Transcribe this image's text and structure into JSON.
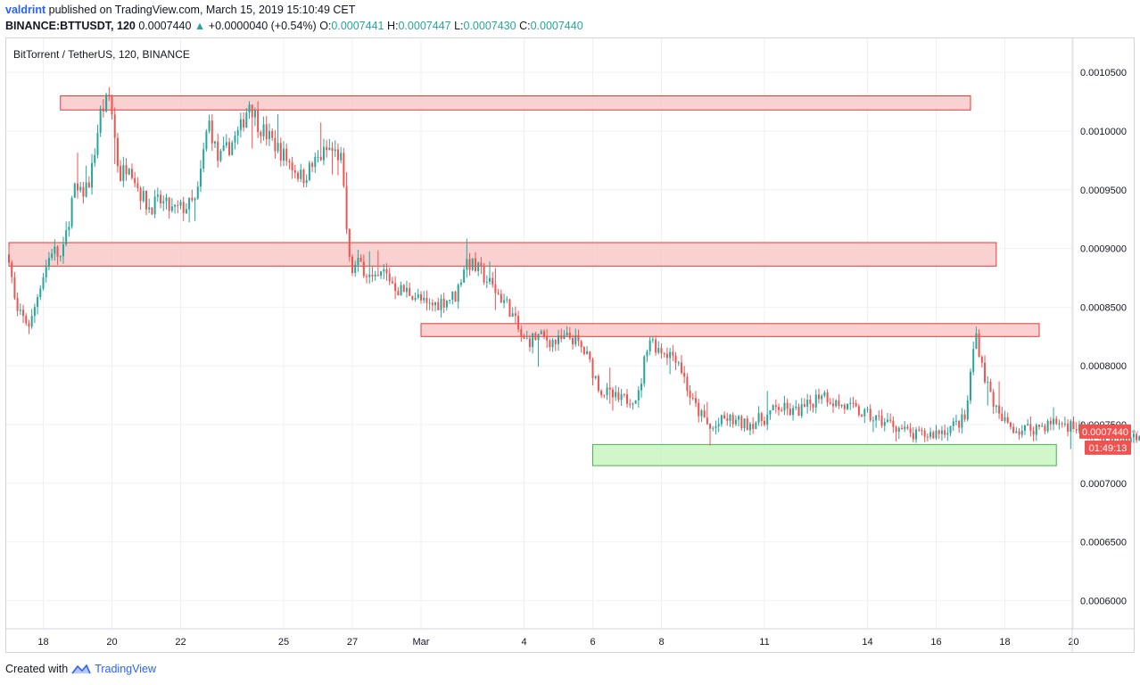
{
  "header": {
    "author": "valdrint",
    "published_text": "published on TradingView.com, March 15, 2019 15:10:49 CET",
    "symbol": "BINANCE:BTTUSDT, 120",
    "last": "0.0007440",
    "change": "+0.0000040 (+0.54%)",
    "o_label": "O:",
    "o_value": "0.0007441",
    "h_label": "H:",
    "h_value": "0.0007447",
    "l_label": "L:",
    "l_value": "0.0007430",
    "c_label": "C:",
    "c_value": "0.0007440"
  },
  "footer": {
    "created_with": "Created with",
    "brand": "TradingView"
  },
  "colors": {
    "up": "#26a69a",
    "down": "#ef5350",
    "grid": "#eef0f4",
    "resistance_fill": "#f8c9c9",
    "resistance_border": "#e53935",
    "support_fill": "#c8f5c0",
    "support_border": "#4caf50",
    "price_label_bg": "#ef5350"
  },
  "chart_data": {
    "type": "candlestick",
    "title": "BitTorrent / TetherUS, 120, BINANCE",
    "x_ticks": [
      "18",
      "20",
      "22",
      "25",
      "27",
      "Mar",
      "4",
      "6",
      "8",
      "11",
      "14",
      "16",
      "18",
      "20"
    ],
    "y_ticks": [
      "0.0010500",
      "0.0010000",
      "0.0009500",
      "0.0009000",
      "0.0008500",
      "0.0008000",
      "0.0007500",
      "0.0007000",
      "0.0006500",
      "0.0006000"
    ],
    "ylim": [
      0.000576,
      0.001079
    ],
    "last_price": "0.0007440",
    "countdown": "01:49:13",
    "zones": [
      {
        "kind": "resistance",
        "top": 0.00103,
        "bottom": 0.001018,
        "start": "Feb 18 12:00",
        "end": "Mar 17"
      },
      {
        "kind": "resistance",
        "top": 0.000905,
        "bottom": 0.000885,
        "start": "Feb 17",
        "end": "Mar 17 18:00"
      },
      {
        "kind": "resistance",
        "top": 0.000836,
        "bottom": 0.000825,
        "start": "Mar 1",
        "end": "Mar 19"
      },
      {
        "kind": "support",
        "top": 0.000733,
        "bottom": 0.000715,
        "start": "Mar 6",
        "end": "Mar 19 12:00"
      }
    ],
    "price_path": [
      [
        0,
        0.000895
      ],
      [
        0.03,
        0.000845
      ],
      [
        0.09,
        0.000835
      ],
      [
        0.13,
        0.00087
      ],
      [
        0.18,
        0.0009
      ],
      [
        0.22,
        0.00089
      ],
      [
        0.27,
        0.00095
      ],
      [
        0.3,
        0.000945
      ],
      [
        0.34,
        0.00096
      ],
      [
        0.38,
        0.001015
      ],
      [
        0.42,
        0.00103
      ],
      [
        0.46,
        0.00096
      ],
      [
        0.5,
        0.000975
      ],
      [
        0.54,
        0.00095
      ],
      [
        0.58,
        0.000935
      ],
      [
        0.63,
        0.00094
      ],
      [
        0.68,
        0.000932
      ],
      [
        0.73,
        0.000935
      ],
      [
        0.78,
        0.00094
      ],
      [
        0.83,
        0.00101
      ],
      [
        0.87,
        0.000975
      ],
      [
        0.91,
        0.000985
      ],
      [
        0.96,
        0.001
      ],
      [
        1.0,
        0.001025
      ],
      [
        1.04,
        0.001005
      ],
      [
        1.1,
        0.00099
      ],
      [
        1.16,
        0.000975
      ],
      [
        1.22,
        0.00096
      ],
      [
        1.28,
        0.000975
      ],
      [
        1.33,
        0.000985
      ],
      [
        1.38,
        0.000978
      ],
      [
        1.42,
        0.00088
      ],
      [
        1.46,
        0.000888
      ],
      [
        1.52,
        0.00087
      ],
      [
        1.56,
        0.00088
      ],
      [
        1.62,
        0.000865
      ],
      [
        1.68,
        0.000862
      ],
      [
        1.74,
        0.00085
      ],
      [
        1.8,
        0.000855
      ],
      [
        1.86,
        0.00086
      ],
      [
        1.9,
        0.00089
      ],
      [
        1.96,
        0.00088
      ],
      [
        2.02,
        0.000865
      ],
      [
        2.08,
        0.00085
      ],
      [
        2.14,
        0.00082
      ],
      [
        2.2,
        0.000825
      ],
      [
        2.28,
        0.00082
      ],
      [
        2.34,
        0.000825
      ],
      [
        2.4,
        0.00081
      ],
      [
        2.46,
        0.00078
      ],
      [
        2.54,
        0.00077
      ],
      [
        2.62,
        0.000775
      ],
      [
        2.66,
        0.000825
      ],
      [
        2.7,
        0.000815
      ],
      [
        2.78,
        0.000808
      ],
      [
        2.84,
        0.00077
      ],
      [
        2.92,
        0.000745
      ],
      [
        2.98,
        0.000755
      ],
      [
        3.06,
        0.00075
      ],
      [
        3.14,
        0.000755
      ],
      [
        3.2,
        0.000765
      ],
      [
        3.26,
        0.00076
      ],
      [
        3.32,
        0.000765
      ],
      [
        3.38,
        0.000778
      ],
      [
        3.44,
        0.000768
      ],
      [
        3.52,
        0.000762
      ],
      [
        3.6,
        0.000755
      ],
      [
        3.68,
        0.00075
      ],
      [
        3.76,
        0.00074
      ],
      [
        3.84,
        0.000742
      ],
      [
        3.92,
        0.000748
      ],
      [
        3.98,
        0.000755
      ],
      [
        4.02,
        0.00083
      ],
      [
        4.06,
        0.00079
      ],
      [
        4.12,
        0.000755
      ],
      [
        4.2,
        0.000745
      ],
      [
        4.28,
        0.000748
      ],
      [
        4.36,
        0.000752
      ],
      [
        4.44,
        0.000748
      ],
      [
        4.52,
        0.000742
      ],
      [
        4.6,
        0.000738
      ],
      [
        4.68,
        0.00074
      ],
      [
        4.76,
        0.000741
      ],
      [
        4.82,
        0.000744
      ]
    ],
    "time_axis": {
      "start": "Feb 17 2019 00:00",
      "end": "Mar 20 2019",
      "candle": "120"
    }
  }
}
